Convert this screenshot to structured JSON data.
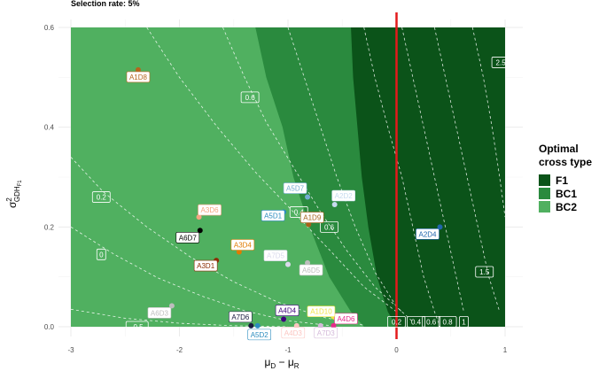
{
  "chart_data": {
    "type": "scatter",
    "title": "Selection rate: 5%",
    "xlabel_main": "μ",
    "xlabel_sub1": "D",
    "xlabel_sep": " − μ",
    "xlabel_sub2": "R",
    "ylabel_main": "σ",
    "ylabel_sup": "2",
    "ylabel_sub": "GDH",
    "ylabel_subsub": "F1",
    "xlim": [
      -3,
      1
    ],
    "ylim": [
      -0.02,
      0.62
    ],
    "x_ticks": [
      -3,
      -2,
      -1,
      0,
      1
    ],
    "x_tick_labels": [
      "-3",
      "-2",
      "-1",
      "0",
      "1"
    ],
    "y_ticks": [
      0.0,
      0.2,
      0.4,
      0.6
    ],
    "y_tick_labels": [
      "0.0",
      "0.2",
      "0.4",
      "0.6"
    ],
    "grid": true,
    "vline_x": 0,
    "vline_color": "#e31a1c",
    "legend": {
      "title_line1": "Optimal",
      "title_line2": "cross type",
      "placement": "right",
      "items": [
        {
          "label": "F1",
          "color": "#0b5319"
        },
        {
          "label": "BC1",
          "color": "#2a8a3e"
        },
        {
          "label": "BC2",
          "color": "#50b060"
        }
      ]
    },
    "regions": [
      {
        "name": "BC2",
        "color": "#50b060"
      },
      {
        "name": "BC1",
        "color": "#2a8a3e",
        "boundary": [
          [
            -1.3,
            0.6
          ],
          [
            -1.2,
            0.5
          ],
          [
            -1.05,
            0.4
          ],
          [
            -0.95,
            0.3
          ],
          [
            -0.8,
            0.2
          ],
          [
            -0.62,
            0.1
          ],
          [
            -0.42,
            0.03
          ],
          [
            -0.3,
            0.0
          ]
        ]
      },
      {
        "name": "F1",
        "color": "#0b5319",
        "boundary": [
          [
            -0.42,
            0.6
          ],
          [
            -0.4,
            0.5
          ],
          [
            -0.36,
            0.4
          ],
          [
            -0.32,
            0.3
          ],
          [
            -0.26,
            0.2
          ],
          [
            -0.18,
            0.1
          ],
          [
            -0.08,
            0.03
          ],
          [
            0.0,
            0.0
          ]
        ]
      }
    ],
    "contours": [
      {
        "label": "-0.5",
        "lx": -2.39,
        "ly": 0.0
      },
      {
        "label": "0",
        "lx": -2.72,
        "ly": 0.145
      },
      {
        "label": "0.2",
        "lx": -2.72,
        "ly": 0.26
      },
      {
        "label": "0.4",
        "lx": -0.9,
        "ly": 0.23
      },
      {
        "label": "0.6",
        "lx": -1.35,
        "ly": 0.46
      },
      {
        "label": "0.6",
        "lx": -0.62,
        "ly": 0.2
      },
      {
        "label": "0.2",
        "lx": 0.0,
        "ly": 0.01
      },
      {
        "label": "0.4",
        "lx": 0.18,
        "ly": 0.01
      },
      {
        "label": "0.6",
        "lx": 0.32,
        "ly": 0.01
      },
      {
        "label": "0.8",
        "lx": 0.47,
        "ly": 0.01
      },
      {
        "label": "1",
        "lx": 0.62,
        "ly": 0.01
      },
      {
        "label": "1.5",
        "lx": 0.81,
        "ly": 0.11
      },
      {
        "label": "2.5",
        "lx": 0.96,
        "ly": 0.53
      }
    ],
    "points": [
      {
        "label": "A1D8",
        "x": -2.38,
        "y": 0.515,
        "color": "#b5651d"
      },
      {
        "label": "A3D6",
        "x": -1.82,
        "y": 0.22,
        "color": "#f4a582"
      },
      {
        "label": "A6D7",
        "x": -1.81,
        "y": 0.193,
        "color": "#000000"
      },
      {
        "label": "A3D4",
        "x": -1.45,
        "y": 0.15,
        "color": "#e07b00"
      },
      {
        "label": "A3D1",
        "x": -1.66,
        "y": 0.133,
        "color": "#8c2d04"
      },
      {
        "label": "A5D1",
        "x": -1.04,
        "y": 0.23,
        "color": "#2b8cbe"
      },
      {
        "label": "A5D7",
        "x": -0.82,
        "y": 0.26,
        "color": "#74add1"
      },
      {
        "label": "A2D2",
        "x": -0.57,
        "y": 0.245,
        "color": "#c6dbef"
      },
      {
        "label": "A1D9",
        "x": -0.81,
        "y": 0.205,
        "color": "#a6611a"
      },
      {
        "label": "A7D5",
        "x": -1.0,
        "y": 0.125,
        "color": "#dadaeb"
      },
      {
        "label": "A6D5",
        "x": -0.82,
        "y": 0.128,
        "color": "#bdbdbd"
      },
      {
        "label": "A2D4",
        "x": 0.4,
        "y": 0.2,
        "color": "#2166ac"
      },
      {
        "label": "A6D3",
        "x": -2.07,
        "y": 0.042,
        "color": "#bdbdbd"
      },
      {
        "label": "A7D6",
        "x": -1.34,
        "y": 0.002,
        "color": "#1a1a40"
      },
      {
        "label": "A5D2",
        "x": -1.28,
        "y": 0.002,
        "color": "#2b8cbe"
      },
      {
        "label": "A4D4",
        "x": -1.04,
        "y": 0.015,
        "color": "#3f007d"
      },
      {
        "label": "A4D3",
        "x": -0.92,
        "y": 0.002,
        "color": "#fcc5c0"
      },
      {
        "label": "A7D3",
        "x": -0.7,
        "y": 0.002,
        "color": "#d4b9da"
      },
      {
        "label": "A4D6",
        "x": -0.58,
        "y": 0.002,
        "color": "#e7298a"
      },
      {
        "label": "A1D10",
        "x": -0.58,
        "y": 0.02,
        "color": "#f0e442"
      }
    ]
  }
}
